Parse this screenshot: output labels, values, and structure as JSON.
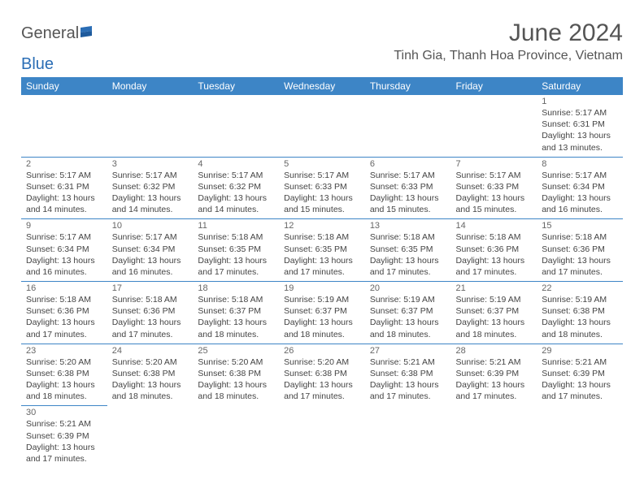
{
  "logo": {
    "text_general": "General",
    "text_blue": "Blue"
  },
  "title": "June 2024",
  "location": "Tinh Gia, Thanh Hoa Province, Vietnam",
  "colors": {
    "header_bg": "#3d85c6",
    "header_fg": "#ffffff",
    "row_border": "#3d85c6",
    "title_color": "#555555",
    "text_color": "#444444",
    "logo_blue": "#2a6db5"
  },
  "day_headers": [
    "Sunday",
    "Monday",
    "Tuesday",
    "Wednesday",
    "Thursday",
    "Friday",
    "Saturday"
  ],
  "weeks": [
    [
      null,
      null,
      null,
      null,
      null,
      null,
      {
        "n": "1",
        "sr": "5:17 AM",
        "ss": "6:31 PM",
        "dl": "13 hours and 13 minutes."
      }
    ],
    [
      {
        "n": "2",
        "sr": "5:17 AM",
        "ss": "6:31 PM",
        "dl": "13 hours and 14 minutes."
      },
      {
        "n": "3",
        "sr": "5:17 AM",
        "ss": "6:32 PM",
        "dl": "13 hours and 14 minutes."
      },
      {
        "n": "4",
        "sr": "5:17 AM",
        "ss": "6:32 PM",
        "dl": "13 hours and 14 minutes."
      },
      {
        "n": "5",
        "sr": "5:17 AM",
        "ss": "6:33 PM",
        "dl": "13 hours and 15 minutes."
      },
      {
        "n": "6",
        "sr": "5:17 AM",
        "ss": "6:33 PM",
        "dl": "13 hours and 15 minutes."
      },
      {
        "n": "7",
        "sr": "5:17 AM",
        "ss": "6:33 PM",
        "dl": "13 hours and 15 minutes."
      },
      {
        "n": "8",
        "sr": "5:17 AM",
        "ss": "6:34 PM",
        "dl": "13 hours and 16 minutes."
      }
    ],
    [
      {
        "n": "9",
        "sr": "5:17 AM",
        "ss": "6:34 PM",
        "dl": "13 hours and 16 minutes."
      },
      {
        "n": "10",
        "sr": "5:17 AM",
        "ss": "6:34 PM",
        "dl": "13 hours and 16 minutes."
      },
      {
        "n": "11",
        "sr": "5:18 AM",
        "ss": "6:35 PM",
        "dl": "13 hours and 17 minutes."
      },
      {
        "n": "12",
        "sr": "5:18 AM",
        "ss": "6:35 PM",
        "dl": "13 hours and 17 minutes."
      },
      {
        "n": "13",
        "sr": "5:18 AM",
        "ss": "6:35 PM",
        "dl": "13 hours and 17 minutes."
      },
      {
        "n": "14",
        "sr": "5:18 AM",
        "ss": "6:36 PM",
        "dl": "13 hours and 17 minutes."
      },
      {
        "n": "15",
        "sr": "5:18 AM",
        "ss": "6:36 PM",
        "dl": "13 hours and 17 minutes."
      }
    ],
    [
      {
        "n": "16",
        "sr": "5:18 AM",
        "ss": "6:36 PM",
        "dl": "13 hours and 17 minutes."
      },
      {
        "n": "17",
        "sr": "5:18 AM",
        "ss": "6:36 PM",
        "dl": "13 hours and 17 minutes."
      },
      {
        "n": "18",
        "sr": "5:18 AM",
        "ss": "6:37 PM",
        "dl": "13 hours and 18 minutes."
      },
      {
        "n": "19",
        "sr": "5:19 AM",
        "ss": "6:37 PM",
        "dl": "13 hours and 18 minutes."
      },
      {
        "n": "20",
        "sr": "5:19 AM",
        "ss": "6:37 PM",
        "dl": "13 hours and 18 minutes."
      },
      {
        "n": "21",
        "sr": "5:19 AM",
        "ss": "6:37 PM",
        "dl": "13 hours and 18 minutes."
      },
      {
        "n": "22",
        "sr": "5:19 AM",
        "ss": "6:38 PM",
        "dl": "13 hours and 18 minutes."
      }
    ],
    [
      {
        "n": "23",
        "sr": "5:20 AM",
        "ss": "6:38 PM",
        "dl": "13 hours and 18 minutes."
      },
      {
        "n": "24",
        "sr": "5:20 AM",
        "ss": "6:38 PM",
        "dl": "13 hours and 18 minutes."
      },
      {
        "n": "25",
        "sr": "5:20 AM",
        "ss": "6:38 PM",
        "dl": "13 hours and 18 minutes."
      },
      {
        "n": "26",
        "sr": "5:20 AM",
        "ss": "6:38 PM",
        "dl": "13 hours and 17 minutes."
      },
      {
        "n": "27",
        "sr": "5:21 AM",
        "ss": "6:38 PM",
        "dl": "13 hours and 17 minutes."
      },
      {
        "n": "28",
        "sr": "5:21 AM",
        "ss": "6:39 PM",
        "dl": "13 hours and 17 minutes."
      },
      {
        "n": "29",
        "sr": "5:21 AM",
        "ss": "6:39 PM",
        "dl": "13 hours and 17 minutes."
      }
    ],
    [
      {
        "n": "30",
        "sr": "5:21 AM",
        "ss": "6:39 PM",
        "dl": "13 hours and 17 minutes."
      },
      null,
      null,
      null,
      null,
      null,
      null
    ]
  ],
  "labels": {
    "sunrise": "Sunrise:",
    "sunset": "Sunset:",
    "daylight": "Daylight:"
  }
}
